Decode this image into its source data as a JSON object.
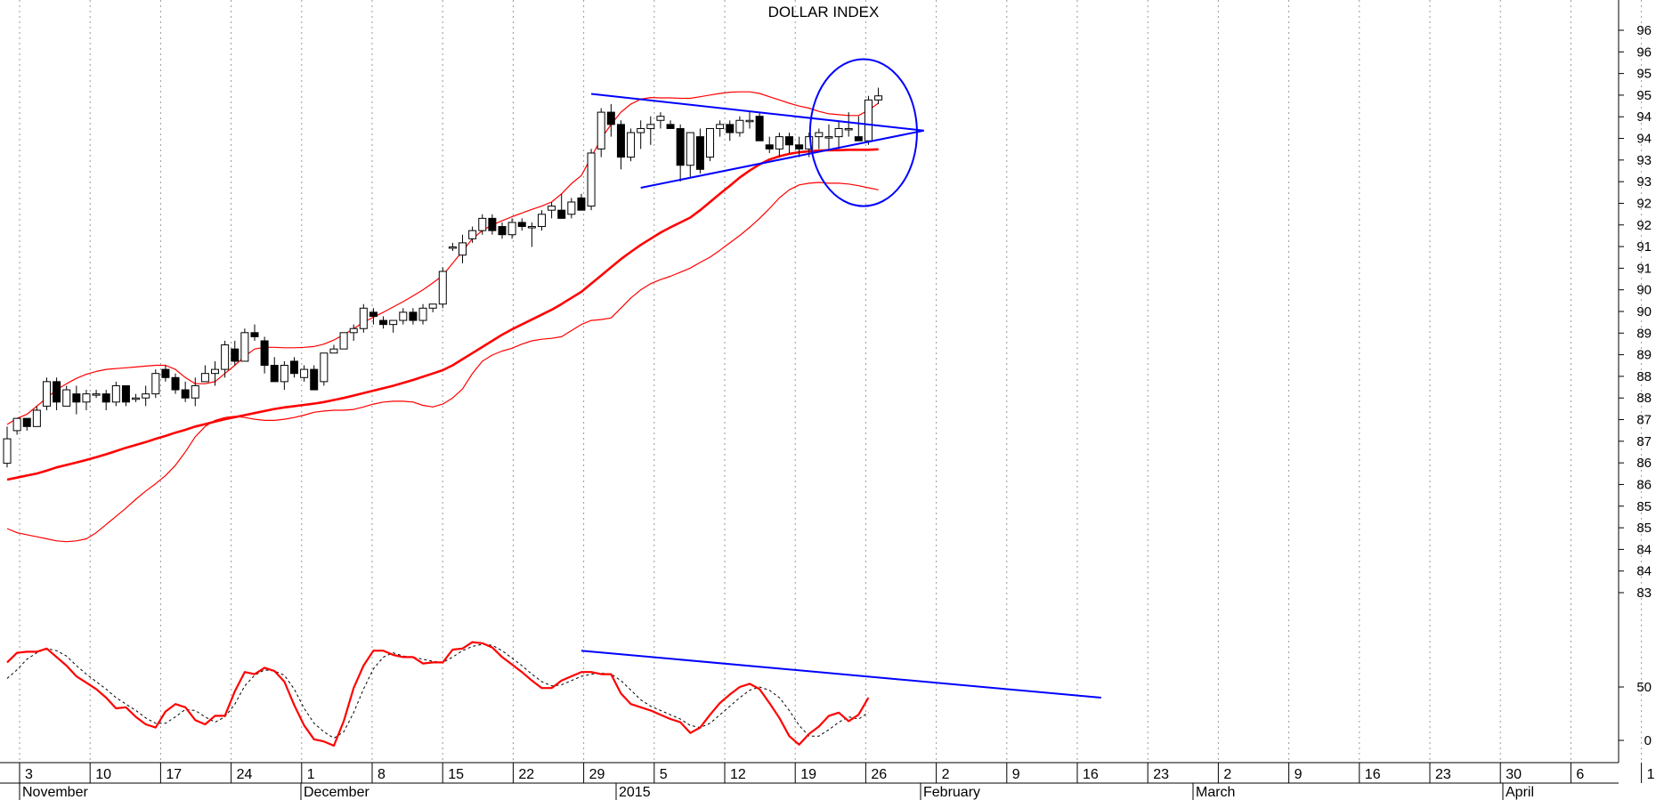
{
  "chart_data": {
    "type": "candlestick",
    "title": "DOLLAR INDEX",
    "colors": {
      "background": "#ffffff",
      "candle_up_fill": "#ffffff",
      "candle_down_fill": "#000000",
      "candle_outline": "#000000",
      "moving_average": "#ff0000",
      "bollinger_bands": "#ff0000",
      "trendlines": "#0000ff",
      "oscillator_main": "#ff0000",
      "oscillator_signal": "#000000",
      "grid": "#999999"
    },
    "grid": "vertical dotted lines at each week",
    "x_axis": {
      "day_labels": [
        "3",
        "10",
        "17",
        "24",
        "1",
        "8",
        "15",
        "22",
        "29",
        "5",
        "12",
        "19",
        "26",
        "2",
        "9",
        "16",
        "23",
        "2",
        "9",
        "16",
        "23",
        "30",
        "6",
        "1"
      ],
      "month_labels": [
        "November",
        "December",
        "2015",
        "February",
        "March",
        "April"
      ]
    },
    "price_panel": {
      "ylim": [
        82.5,
        96.8
      ],
      "tick_labels": [
        "96",
        "96",
        "95",
        "95",
        "94",
        "94",
        "93",
        "93",
        "92",
        "92",
        "91",
        "91",
        "90",
        "90",
        "89",
        "89",
        "88",
        "88",
        "87",
        "87",
        "86",
        "86",
        "85",
        "85",
        "84",
        "84",
        "83"
      ],
      "candles": {
        "columns": [
          "open",
          "high",
          "low",
          "close"
        ],
        "values": [
          [
            85.8,
            86.7,
            85.7,
            86.4
          ],
          [
            86.6,
            86.9,
            86.5,
            86.9
          ],
          [
            86.9,
            86.9,
            86.6,
            86.7
          ],
          [
            86.7,
            87.2,
            86.7,
            87.1
          ],
          [
            87.2,
            87.9,
            87.1,
            87.8
          ],
          [
            87.8,
            87.9,
            87.1,
            87.3
          ],
          [
            87.2,
            87.7,
            87.2,
            87.6
          ],
          [
            87.5,
            87.7,
            87.0,
            87.3
          ],
          [
            87.3,
            87.6,
            87.1,
            87.5
          ],
          [
            87.5,
            87.6,
            87.4,
            87.5
          ],
          [
            87.5,
            87.6,
            87.1,
            87.3
          ],
          [
            87.3,
            87.8,
            87.2,
            87.7
          ],
          [
            87.7,
            87.7,
            87.2,
            87.3
          ],
          [
            87.4,
            87.5,
            87.3,
            87.4
          ],
          [
            87.4,
            87.7,
            87.2,
            87.5
          ],
          [
            87.5,
            88.1,
            87.4,
            88.0
          ],
          [
            88.1,
            88.2,
            87.8,
            87.9
          ],
          [
            87.9,
            88.0,
            87.5,
            87.6
          ],
          [
            87.6,
            87.8,
            87.3,
            87.4
          ],
          [
            87.4,
            87.9,
            87.2,
            87.7
          ],
          [
            87.8,
            88.2,
            87.8,
            88.0
          ],
          [
            88.0,
            88.3,
            87.7,
            88.1
          ],
          [
            88.1,
            88.8,
            87.9,
            88.7
          ],
          [
            88.6,
            88.8,
            88.2,
            88.3
          ],
          [
            88.3,
            89.1,
            88.3,
            89.0
          ],
          [
            89.0,
            89.2,
            88.8,
            88.9
          ],
          [
            88.8,
            88.9,
            88.0,
            88.2
          ],
          [
            88.2,
            88.4,
            87.8,
            87.8
          ],
          [
            87.8,
            88.3,
            87.6,
            88.2
          ],
          [
            88.3,
            88.4,
            87.9,
            88.0
          ],
          [
            87.9,
            88.2,
            87.8,
            88.1
          ],
          [
            88.1,
            88.2,
            87.6,
            87.6
          ],
          [
            87.8,
            88.5,
            87.7,
            88.5
          ],
          [
            88.5,
            88.7,
            88.5,
            88.6
          ],
          [
            88.6,
            89.0,
            88.6,
            89.0
          ],
          [
            89.0,
            89.2,
            88.8,
            89.1
          ],
          [
            89.1,
            89.7,
            89.0,
            89.6
          ],
          [
            89.5,
            89.6,
            89.2,
            89.4
          ],
          [
            89.3,
            89.4,
            89.1,
            89.2
          ],
          [
            89.2,
            89.3,
            89.0,
            89.3
          ],
          [
            89.3,
            89.6,
            89.2,
            89.5
          ],
          [
            89.5,
            89.6,
            89.2,
            89.3
          ],
          [
            89.3,
            89.7,
            89.2,
            89.6
          ],
          [
            89.6,
            89.7,
            89.5,
            89.7
          ],
          [
            89.7,
            90.6,
            89.6,
            90.5
          ],
          [
            91.1,
            91.2,
            91.0,
            91.1
          ],
          [
            90.9,
            91.4,
            90.7,
            91.2
          ],
          [
            91.3,
            91.6,
            91.2,
            91.5
          ],
          [
            91.5,
            91.9,
            91.4,
            91.8
          ],
          [
            91.8,
            91.9,
            91.4,
            91.5
          ],
          [
            91.6,
            91.7,
            91.3,
            91.4
          ],
          [
            91.4,
            91.8,
            91.3,
            91.7
          ],
          [
            91.7,
            91.8,
            91.5,
            91.6
          ],
          [
            91.6,
            91.7,
            91.1,
            91.6
          ],
          [
            91.6,
            92.0,
            91.5,
            91.9
          ],
          [
            92.0,
            92.2,
            91.8,
            92.1
          ],
          [
            92.0,
            92.4,
            91.8,
            91.8
          ],
          [
            91.9,
            92.3,
            91.8,
            92.2
          ],
          [
            92.3,
            92.4,
            92.0,
            92.0
          ],
          [
            92.1,
            93.5,
            92.0,
            93.4
          ],
          [
            93.5,
            94.5,
            93.3,
            94.4
          ],
          [
            94.4,
            94.6,
            93.8,
            94.1
          ],
          [
            94.1,
            94.2,
            93.0,
            93.3
          ],
          [
            93.3,
            94.0,
            93.2,
            93.9
          ],
          [
            93.9,
            94.2,
            93.5,
            94.0
          ],
          [
            94.0,
            94.3,
            93.6,
            94.1
          ],
          [
            94.2,
            94.4,
            94.0,
            94.3
          ],
          [
            94.1,
            94.2,
            94.0,
            94.0
          ],
          [
            94.0,
            94.1,
            92.7,
            93.1
          ],
          [
            93.1,
            93.9,
            92.8,
            93.9
          ],
          [
            93.8,
            94.0,
            92.9,
            93.0
          ],
          [
            93.3,
            94.0,
            93.2,
            94.0
          ],
          [
            94.0,
            94.2,
            93.8,
            94.1
          ],
          [
            94.1,
            94.2,
            93.7,
            93.9
          ],
          [
            93.9,
            94.3,
            93.8,
            94.2
          ],
          [
            94.2,
            94.4,
            94.0,
            94.2
          ],
          [
            94.3,
            94.4,
            93.7,
            93.7
          ],
          [
            93.6,
            93.8,
            93.4,
            93.5
          ],
          [
            93.5,
            93.9,
            93.3,
            93.8
          ],
          [
            93.8,
            93.9,
            93.4,
            93.6
          ],
          [
            93.6,
            93.8,
            93.3,
            93.5
          ],
          [
            93.5,
            93.9,
            93.3,
            93.8
          ],
          [
            93.8,
            94.0,
            93.5,
            93.9
          ],
          [
            93.8,
            94.1,
            93.5,
            93.8
          ],
          [
            93.8,
            94.2,
            93.5,
            94.0
          ],
          [
            94.0,
            94.4,
            93.8,
            94.0
          ],
          [
            93.8,
            94.3,
            93.7,
            93.7
          ],
          [
            93.7,
            94.8,
            93.6,
            94.7
          ],
          [
            94.7,
            95.0,
            94.6,
            94.8
          ]
        ]
      },
      "moving_average": [
        85.4,
        85.45,
        85.5,
        85.55,
        85.62,
        85.7,
        85.76,
        85.82,
        85.88,
        85.95,
        86.02,
        86.1,
        86.18,
        86.25,
        86.32,
        86.4,
        86.47,
        86.55,
        86.62,
        86.7,
        86.76,
        86.82,
        86.88,
        86.93,
        86.98,
        87.03,
        87.08,
        87.13,
        87.17,
        87.2,
        87.23,
        87.26,
        87.3,
        87.35,
        87.4,
        87.46,
        87.52,
        87.58,
        87.64,
        87.7,
        87.77,
        87.84,
        87.92,
        88.0,
        88.08,
        88.2,
        88.35,
        88.5,
        88.65,
        88.8,
        88.95,
        89.08,
        89.2,
        89.32,
        89.44,
        89.56,
        89.7,
        89.85,
        90.0,
        90.2,
        90.4,
        90.6,
        90.8,
        90.98,
        91.15,
        91.3,
        91.45,
        91.58,
        91.7,
        91.82,
        92.0,
        92.2,
        92.4,
        92.6,
        92.8,
        92.97,
        93.12,
        93.24,
        93.32,
        93.38,
        93.42,
        93.44,
        93.46,
        93.47,
        93.47,
        93.48,
        93.48,
        93.48,
        93.49
      ],
      "upper_band": [
        86.75,
        86.9,
        87.0,
        87.2,
        87.4,
        87.6,
        87.75,
        87.88,
        87.98,
        88.05,
        88.1,
        88.12,
        88.14,
        88.16,
        88.18,
        88.2,
        88.2,
        88.1,
        87.9,
        87.75,
        87.75,
        87.8,
        88.0,
        88.2,
        88.42,
        88.6,
        88.64,
        88.64,
        88.63,
        88.63,
        88.64,
        88.66,
        88.72,
        88.82,
        88.95,
        89.1,
        89.25,
        89.38,
        89.5,
        89.63,
        89.76,
        89.9,
        90.05,
        90.22,
        90.4,
        90.7,
        91.0,
        91.3,
        91.5,
        91.64,
        91.74,
        91.84,
        91.93,
        92.02,
        92.1,
        92.2,
        92.4,
        92.65,
        92.85,
        93.3,
        93.75,
        94.1,
        94.4,
        94.6,
        94.72,
        94.76,
        94.75,
        94.75,
        94.74,
        94.74,
        94.78,
        94.82,
        94.86,
        94.89,
        94.9,
        94.9,
        94.86,
        94.78,
        94.7,
        94.62,
        94.55,
        94.5,
        94.42,
        94.36,
        94.34,
        94.32,
        94.32,
        94.45,
        94.62
      ],
      "lower_band": [
        84.2,
        84.1,
        84.05,
        84.0,
        83.95,
        83.9,
        83.88,
        83.9,
        83.95,
        84.1,
        84.3,
        84.5,
        84.7,
        84.92,
        85.12,
        85.3,
        85.5,
        85.75,
        86.08,
        86.45,
        86.7,
        86.85,
        86.92,
        86.95,
        86.92,
        86.88,
        86.85,
        86.85,
        86.88,
        86.92,
        86.98,
        87.05,
        87.08,
        87.1,
        87.1,
        87.12,
        87.18,
        87.25,
        87.3,
        87.32,
        87.32,
        87.3,
        87.22,
        87.18,
        87.25,
        87.4,
        87.62,
        88.0,
        88.3,
        88.45,
        88.55,
        88.62,
        88.72,
        88.8,
        88.84,
        88.86,
        88.9,
        89.05,
        89.2,
        89.3,
        89.32,
        89.36,
        89.6,
        89.85,
        90.05,
        90.2,
        90.3,
        90.38,
        90.48,
        90.58,
        90.72,
        90.85,
        91.02,
        91.2,
        91.38,
        91.58,
        91.8,
        92.04,
        92.3,
        92.5,
        92.62,
        92.66,
        92.68,
        92.66,
        92.66,
        92.64,
        92.6,
        92.55,
        92.5
      ],
      "trendlines": {
        "resistance": {
          "from": [
            59,
            94.85
          ],
          "to": [
            92.6,
            93.95
          ]
        },
        "support": {
          "from": [
            64,
            92.55
          ],
          "to": [
            92.6,
            93.95
          ]
        }
      },
      "highlight": {
        "shape": "circle",
        "center": [
          86.5,
          93.9
        ],
        "radius_x": 5.4,
        "radius_y": 1.8
      }
    },
    "oscillator_panel": {
      "ylim": [
        -20,
        110
      ],
      "tick_labels": [
        "50",
        "0"
      ],
      "main": [
        73,
        82,
        83,
        83,
        86,
        78,
        70,
        60,
        54,
        48,
        40,
        30,
        31,
        22,
        15,
        12,
        27,
        34,
        31,
        19,
        15,
        23,
        23,
        46,
        64,
        62,
        68,
        65,
        55,
        33,
        14,
        1,
        -1,
        -5,
        18,
        49,
        70,
        84,
        84,
        80,
        78,
        78,
        72,
        73,
        73,
        85,
        86,
        92,
        91,
        87,
        78,
        71,
        64,
        56,
        49,
        49,
        56,
        60,
        64,
        64,
        62,
        62,
        44,
        34,
        31,
        28,
        24,
        20,
        17,
        7,
        12,
        24,
        35,
        43,
        50,
        53,
        48,
        35,
        21,
        4,
        -4,
        6,
        13,
        23,
        26,
        18,
        24,
        40
      ],
      "signal": [
        58,
        66,
        76,
        82,
        86,
        84,
        79,
        70,
        62,
        55,
        48,
        40,
        34,
        28,
        21,
        16,
        16,
        22,
        29,
        28,
        22,
        17,
        22,
        34,
        51,
        61,
        66,
        65,
        61,
        48,
        30,
        16,
        8,
        2,
        8,
        26,
        48,
        67,
        78,
        82,
        79,
        78,
        76,
        74,
        73,
        78,
        84,
        88,
        90,
        89,
        84,
        77,
        70,
        62,
        55,
        51,
        52,
        56,
        60,
        62,
        63,
        62,
        56,
        47,
        38,
        32,
        28,
        24,
        20,
        14,
        12,
        16,
        24,
        32,
        40,
        47,
        50,
        47,
        40,
        28,
        14,
        4,
        4,
        10,
        17,
        22,
        20,
        26
      ]
    }
  }
}
